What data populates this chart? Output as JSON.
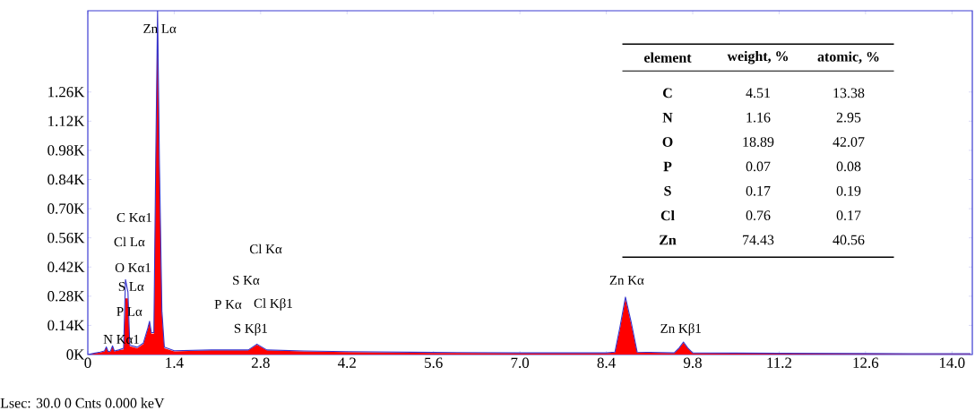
{
  "chart_data": [
    {
      "type": "area",
      "x": [
        0.0,
        0.1,
        0.2,
        0.27,
        0.3,
        0.33,
        0.37,
        0.4,
        0.43,
        0.5,
        0.58,
        0.61,
        0.65,
        0.68,
        0.8,
        0.9,
        0.97,
        1.0,
        1.03,
        1.07,
        1.1,
        1.13,
        1.16,
        1.2,
        1.24,
        1.4,
        2.0,
        2.6,
        2.74,
        2.9,
        3.5,
        4.2,
        5.6,
        7.0,
        8.4,
        8.54,
        8.62,
        8.71,
        8.8,
        8.9,
        9.5,
        9.58,
        9.65,
        9.72,
        9.8,
        11.2,
        12.6,
        14.0,
        14.3
      ],
      "series": [
        {
          "type": "area",
          "color": "#ff0000",
          "values": [
            0,
            0.005,
            0.01,
            0.015,
            0.035,
            0.012,
            0.015,
            0.04,
            0.015,
            0.02,
            0.025,
            0.27,
            0.27,
            0.04,
            0.03,
            0.05,
            0.12,
            0.155,
            0.1,
            0.1,
            0.9,
            1.64,
            0.9,
            0.2,
            0.03,
            0.015,
            0.02,
            0.02,
            0.047,
            0.02,
            0.015,
            0.012,
            0.008,
            0.006,
            0.006,
            0.01,
            0.12,
            0.27,
            0.15,
            0.01,
            0.006,
            0.03,
            0.057,
            0.03,
            0.006,
            0.004,
            0.003,
            0.002,
            0.002
          ]
        },
        {
          "type": "line",
          "color": "#3333cc",
          "values": [
            0,
            0.006,
            0.012,
            0.017,
            0.037,
            0.014,
            0.017,
            0.042,
            0.017,
            0.022,
            0.03,
            0.36,
            0.3,
            0.045,
            0.035,
            0.055,
            0.125,
            0.16,
            0.105,
            0.105,
            0.92,
            1.65,
            0.92,
            0.21,
            0.035,
            0.018,
            0.022,
            0.022,
            0.05,
            0.022,
            0.017,
            0.014,
            0.01,
            0.008,
            0.008,
            0.012,
            0.13,
            0.276,
            0.16,
            0.012,
            0.008,
            0.032,
            0.06,
            0.032,
            0.008,
            0.006,
            0.005,
            0.004,
            0.004
          ]
        }
      ],
      "xlim": [
        0,
        14.33
      ],
      "ylim": [
        0,
        1.65
      ],
      "xticks": [
        0,
        1.4,
        2.8,
        4.2,
        5.6,
        {
          "value": 7,
          "label": "7.0"
        },
        8.4,
        9.8,
        11.2,
        12.6,
        {
          "value": 14,
          "label": "14.0"
        }
      ],
      "yticks": [
        {
          "value": 0,
          "label": "0K"
        },
        {
          "value": 0.14,
          "label": "0.14K"
        },
        {
          "value": 0.28,
          "label": "0.28K"
        },
        {
          "value": 0.42,
          "label": "0.42K"
        },
        {
          "value": 0.56,
          "label": "0.56K"
        },
        {
          "value": 0.7,
          "label": "0.70K"
        },
        {
          "value": 0.84,
          "label": "0.84K"
        },
        {
          "value": 0.98,
          "label": "0.98K"
        },
        {
          "value": 1.12,
          "label": "1.12K"
        },
        {
          "value": 1.26,
          "label": "1.26K"
        }
      ],
      "annotations": [
        "Zn Lα",
        "C Kα1",
        "Cl Lα",
        "O Kα1",
        "S Lα",
        "P Lα",
        "N Kα1",
        "Cl Kα",
        "S Kα",
        "P Kα",
        "Cl Kβ1",
        "S Kβ1",
        "Zn Kα",
        "Zn Kβ1",
        "Lsec: 30.0    0 Cnts    0.000 keV"
      ]
    },
    {
      "type": "heatmap",
      "ylabel": "element",
      "categories": [
        "weight, %",
        "atomic, %"
      ],
      "y_categories": [
        "C",
        "N",
        "O",
        "P",
        "S",
        "Cl",
        "Zn"
      ],
      "cells": [
        [
          4.51,
          13.38
        ],
        [
          1.16,
          2.95
        ],
        [
          18.89,
          42.07
        ],
        [
          0.07,
          0.08
        ],
        [
          0.17,
          0.19
        ],
        [
          0.76,
          0.17
        ],
        [
          74.43,
          40.56
        ]
      ],
      "data_labels": true
    }
  ]
}
